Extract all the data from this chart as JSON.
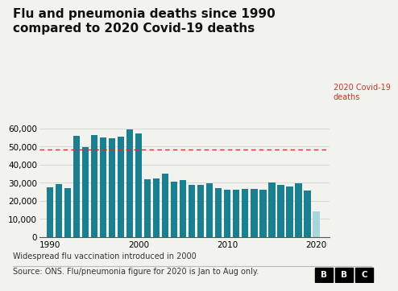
{
  "title": "Flu and pneumonia deaths since 1990\ncompared to 2020 Covid-19 deaths",
  "years": [
    1990,
    1991,
    1992,
    1993,
    1994,
    1995,
    1996,
    1997,
    1998,
    1999,
    2000,
    2001,
    2002,
    2003,
    2004,
    2005,
    2006,
    2007,
    2008,
    2009,
    2010,
    2011,
    2012,
    2013,
    2014,
    2015,
    2016,
    2017,
    2018,
    2019,
    2020
  ],
  "values": [
    27500,
    29000,
    27000,
    56000,
    49500,
    56500,
    55000,
    54500,
    55500,
    59500,
    57000,
    32000,
    32500,
    35000,
    30500,
    31500,
    28500,
    28500,
    29500,
    27000,
    26000,
    26000,
    26500,
    26500,
    26000,
    30000,
    28500,
    28000,
    29500,
    25500,
    14000
  ],
  "bar_color": "#1a7f8e",
  "last_bar_color": "#aad4db",
  "covid_line_y": 48500,
  "covid_line_color": "#c0392b",
  "covid_label": "2020 Covid-19\ndeaths",
  "ylim": [
    0,
    65000
  ],
  "yticks": [
    0,
    10000,
    20000,
    30000,
    40000,
    50000,
    60000
  ],
  "xticks": [
    1990,
    2000,
    2010,
    2020
  ],
  "footnote1": "Widespread flu vaccination introduced in 2000",
  "footnote2": "Source: ONS. Flu/pneumonia figure for 2020 is Jan to Aug only.",
  "bg_color": "#f2f2ee",
  "title_fontsize": 11,
  "tick_fontsize": 7.5,
  "footnote_fontsize": 7.0
}
